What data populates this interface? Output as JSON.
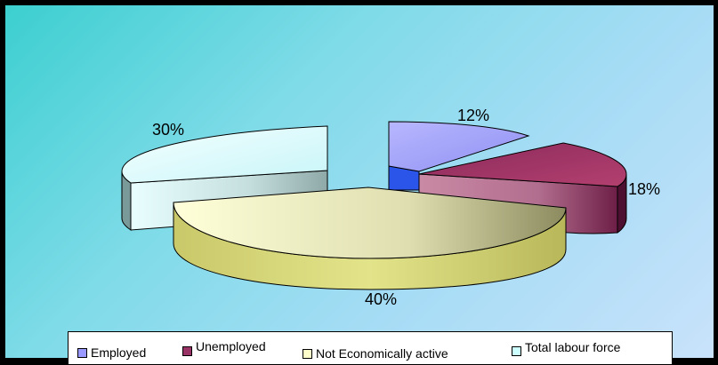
{
  "chart_data": {
    "type": "pie",
    "style": "3d-exploded",
    "series": [
      {
        "name": "Employed",
        "value": 12,
        "label": "12%",
        "color": "#9999ff",
        "side_color": "#2b55e8"
      },
      {
        "name": "Unemployed",
        "value": 18,
        "label": "18%",
        "color": "#993366",
        "side_color": "#4d1030"
      },
      {
        "name": "Not Economically active",
        "value": 40,
        "label": "40%",
        "color": "#ffffcc",
        "side_color": "#c8c873"
      },
      {
        "name": "Total labour force",
        "value": 30,
        "label": "30%",
        "color": "#ccffff",
        "side_color": "#8fb3b3"
      }
    ],
    "legend_position": "bottom",
    "background": "gradient teal to light blue"
  }
}
